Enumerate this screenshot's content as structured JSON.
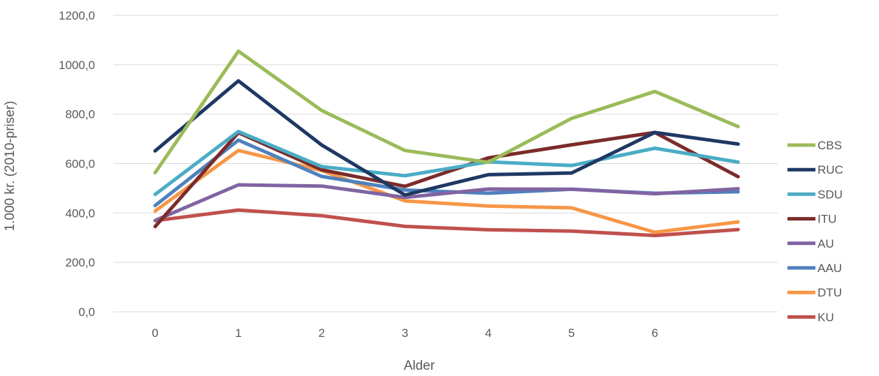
{
  "chart_data": {
    "type": "line",
    "title": "",
    "xlabel": "Alder",
    "ylabel": "1.000 kr. (2010-priser)",
    "x": [
      0,
      1,
      2,
      3,
      4,
      5,
      6,
      7
    ],
    "x_tick_labels": [
      "0",
      "1",
      "2",
      "3",
      "4",
      "5",
      "6"
    ],
    "ylim": [
      0,
      1200
    ],
    "y_ticks": [
      0,
      200,
      400,
      600,
      800,
      1000,
      1200
    ],
    "y_tick_labels": [
      "0,0",
      "200,0",
      "400,0",
      "600,0",
      "800,0",
      "1000,0",
      "1200,0"
    ],
    "grid": "horizontal",
    "legend_position": "right",
    "series": [
      {
        "name": "CBS",
        "color": "#9BBB59",
        "values": [
          563,
          1055,
          815,
          653,
          605,
          783,
          892,
          750
        ]
      },
      {
        "name": "RUC",
        "color": "#1F3864",
        "values": [
          651,
          935,
          675,
          473,
          555,
          562,
          726,
          679
        ]
      },
      {
        "name": "SDU",
        "color": "#4BACC6",
        "values": [
          475,
          730,
          588,
          551,
          607,
          592,
          662,
          606
        ]
      },
      {
        "name": "ITU",
        "color": "#7B2C2A",
        "values": [
          345,
          725,
          575,
          508,
          623,
          676,
          726,
          547
        ]
      },
      {
        "name": "AU",
        "color": "#8064A2",
        "values": [
          370,
          514,
          509,
          463,
          497,
          496,
          478,
          498
        ]
      },
      {
        "name": "AAU",
        "color": "#4F81BD",
        "values": [
          430,
          695,
          548,
          493,
          480,
          496,
          480,
          486
        ]
      },
      {
        "name": "DTU",
        "color": "#F79646",
        "values": [
          408,
          653,
          572,
          449,
          428,
          421,
          322,
          364
        ]
      },
      {
        "name": "KU",
        "color": "#C0504D",
        "values": [
          369,
          412,
          389,
          346,
          332,
          327,
          309,
          333
        ]
      }
    ]
  }
}
